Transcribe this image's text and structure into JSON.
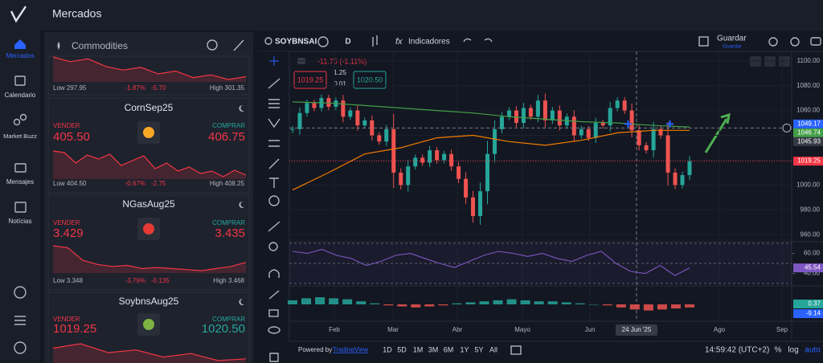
{
  "sidebar": {
    "items": [
      "Mercados",
      "Calendario",
      "Market Buzz",
      "Mensajes",
      "Notícias"
    ]
  },
  "header": {
    "title": "Mercados"
  },
  "watchlist": {
    "title": "Commodities",
    "cards": [
      {
        "low": "Low 297.95",
        "change_pct": "-1.87%",
        "change": "-5.70",
        "high": "High 301.35",
        "spark": [
          302,
          301.5,
          301.8,
          301,
          300.6,
          300.9,
          300.2,
          300.5,
          299.8,
          300.1,
          299.6,
          299.9
        ]
      },
      {
        "name": "CornSep25",
        "sell_label": "VENDER",
        "sell": "405.50",
        "buy_label": "COMPRAR",
        "buy": "406.75",
        "low": "Low 404.50",
        "change_pct": "-0.67%",
        "change": "-2.75",
        "high": "High 408.25",
        "spark": [
          408,
          407.8,
          406.5,
          407.5,
          407,
          407.6,
          406.2,
          406.8,
          407.4,
          405.8,
          406.5,
          405.5,
          406,
          405.2,
          405.5,
          404.8,
          405.6,
          405
        ]
      },
      {
        "name": "NGasAug25",
        "sell_label": "VENDER",
        "sell": "3.429",
        "buy_label": "COMPRAR",
        "buy": "3.435",
        "low": "Low 3.348",
        "change_pct": "-3.79%",
        "change": "-0.135",
        "high": "High 3.468",
        "spark": [
          3.47,
          3.46,
          3.4,
          3.38,
          3.37,
          3.375,
          3.36,
          3.365,
          3.36,
          3.355,
          3.35,
          3.36,
          3.37,
          3.39
        ]
      },
      {
        "name": "SoybnsAug25",
        "sell_label": "VENDER",
        "sell": "1019.25",
        "buy_label": "COMPRAR",
        "buy": "1020.50",
        "spark": [
          1021,
          1021.5,
          1020.5,
          1020.8,
          1020,
          1020.4,
          1019.6,
          1019.8
        ]
      }
    ]
  },
  "toolbar": {
    "symbol": "SOYBNSAI",
    "interval": "D",
    "indicators": "Indicadores",
    "save": "Guardar",
    "save_sub": "Guardar"
  },
  "footer": {
    "powered_by": "Powered by",
    "brand": "TradingView",
    "ranges": [
      "1D",
      "5D",
      "1M",
      "3M",
      "6M",
      "1Y",
      "5Y",
      "All"
    ],
    "clock": "14:59:42 (UTC+2)",
    "percent": "%",
    "log": "log",
    "auto": "auto"
  },
  "chart_data": {
    "type": "candlestick",
    "change_label": "-11.75 (-1.11%)",
    "sell": "1019.25",
    "spread": "1.25",
    "tick_size": "0.01",
    "buy": "1020.50",
    "up_color": "#26a69a",
    "down_color": "#ef5350",
    "close": [
      1045,
      1058,
      1066,
      1062,
      1070,
      1063,
      1068,
      1055,
      1060,
      1048,
      1052,
      1040,
      1035,
      1045,
      1010,
      1000,
      1015,
      1022,
      1018,
      1028,
      1020,
      1025,
      1015,
      1005,
      990,
      975,
      995,
      1025,
      1045,
      1055,
      1060,
      1050,
      1062,
      1055,
      1068,
      1052,
      1060,
      1048,
      1055,
      1040,
      1045,
      1038,
      1050,
      1048,
      1062,
      1068,
      1060,
      1044,
      1032,
      1028,
      1045,
      1040,
      1010,
      1000,
      1008,
      1019.25
    ],
    "ylim": [
      955,
      1105
    ],
    "yticks": [
      {
        "value": 1100,
        "label": "1100.00"
      },
      {
        "value": 1080,
        "label": "1080.00"
      },
      {
        "value": 1060,
        "label": "1060.00"
      },
      {
        "value": 1040,
        "label": "1040.00"
      },
      {
        "value": 1020,
        "label": "1020.00"
      },
      {
        "value": 1000,
        "label": "1000.00"
      },
      {
        "value": 980,
        "label": "980.00"
      },
      {
        "value": 960,
        "label": "960.00"
      }
    ],
    "x_labels": [
      "Feb",
      "Mar",
      "Abr",
      "Mayo",
      "Jun",
      "Ago",
      "Sep"
    ],
    "crosshair_x_label": "24 Jun '25",
    "lines": [
      {
        "color": "#f57c00",
        "values": [
          996,
          1010,
          1025,
          1030,
          1038,
          1040,
          1035,
          1032,
          1036,
          1042,
          1044,
          1044
        ]
      },
      {
        "color": "#43a047",
        "values": [
          1067,
          1066,
          1064,
          1062,
          1060,
          1058,
          1055,
          1053,
          1051,
          1050,
          1048,
          1046.74
        ]
      }
    ],
    "price_labels": [
      {
        "value": 1049.17,
        "color": "#2962ff"
      },
      {
        "value": 1046.74,
        "color": "#43a047"
      },
      {
        "value": 1045.93,
        "color": "#363a45"
      },
      {
        "value": 1019.25,
        "color": "#f23645"
      }
    ],
    "rsi": {
      "ylim": [
        30,
        70
      ],
      "yticks": [
        {
          "value": 60,
          "label": "60.00"
        },
        {
          "value": 40,
          "label": "40.00"
        }
      ],
      "color": "#7e57c2",
      "values": [
        62,
        60,
        64,
        58,
        55,
        48,
        52,
        58,
        60,
        55,
        50,
        46,
        52,
        58,
        62,
        60,
        57,
        60,
        55,
        52,
        58,
        62,
        50,
        42,
        40,
        48,
        38,
        45.54
      ],
      "last": 45.54
    },
    "macd": {
      "ylim": [
        -15,
        15
      ],
      "histogram": [
        4,
        6,
        7,
        6,
        5,
        3,
        1,
        -1,
        -2,
        -3,
        -2,
        -1,
        1,
        2,
        3,
        4,
        5,
        4,
        3,
        3,
        2,
        1,
        0,
        -1,
        -3,
        -5,
        -6,
        -5,
        -4,
        -3
      ],
      "labels": [
        {
          "value": 0.37,
          "color": "#26a69a"
        },
        {
          "value": -9.14,
          "color": "#2962ff"
        }
      ]
    }
  }
}
